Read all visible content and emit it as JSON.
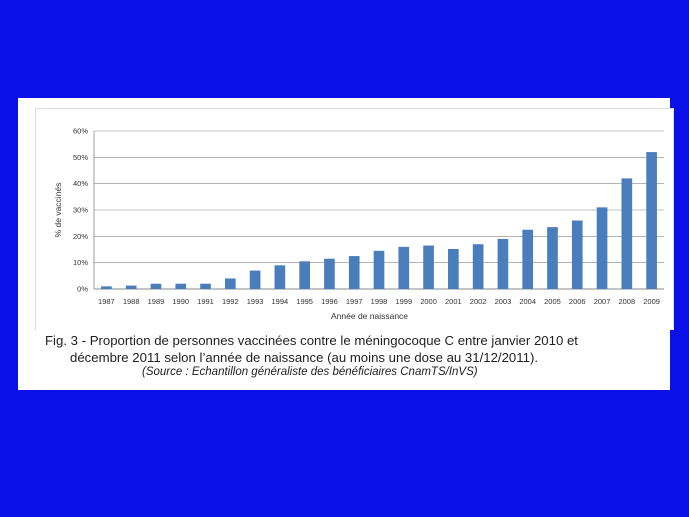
{
  "colors": {
    "background": "#0a10e8",
    "bar": "#4a7dbc",
    "grid": "#888888"
  },
  "chart_data": {
    "type": "bar",
    "xlabel": "Année de naissance",
    "ylabel": "% de vaccinés",
    "ylim": [
      0,
      60
    ],
    "yticks": [
      "0%",
      "10%",
      "20%",
      "30%",
      "40%",
      "50%",
      "60%"
    ],
    "grid": true,
    "categories": [
      "1987",
      "1988",
      "1989",
      "1990",
      "1991",
      "1992",
      "1993",
      "1994",
      "1995",
      "1996",
      "1997",
      "1998",
      "1999",
      "2000",
      "2001",
      "2002",
      "2003",
      "2004",
      "2005",
      "2006",
      "2007",
      "2008",
      "2009"
    ],
    "series": [
      {
        "values": [
          1,
          1.3,
          2,
          2,
          2,
          4,
          7,
          9,
          10.5,
          11.5,
          12.5,
          14.5,
          16,
          16.5,
          15.2,
          17,
          19,
          22.5,
          23.5,
          26,
          31,
          42,
          52
        ]
      }
    ]
  },
  "caption": {
    "line1": "Fig. 3 - Proportion de personnes vaccinées contre le méningocoque C entre janvier 2010 et",
    "line2": "décembre 2011 selon l’année de naissance (au moins une dose au 31/12/2011).",
    "source": "(Source : Echantillon généraliste des bénéficiaires CnamTS/InVS)"
  }
}
